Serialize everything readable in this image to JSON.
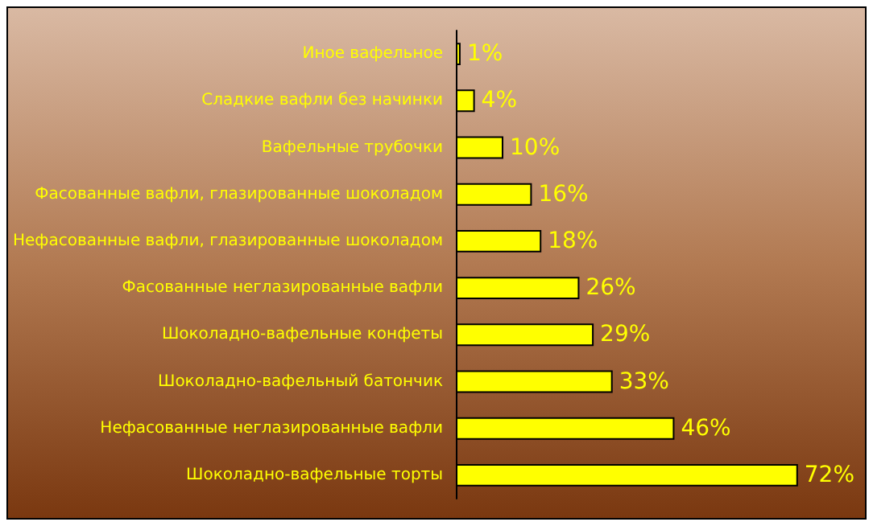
{
  "chart_data": {
    "type": "bar",
    "orientation": "horizontal",
    "categories": [
      "Иное вафельное",
      "Сладкие вафли без начинки",
      "Вафельные трубочки",
      "Фасованные вафли, глазированные шоколадом",
      "Нефасованные вафли, глазированные шоколадом",
      "Фасованные неглазированные вафли",
      "Шоколадно-вафельные конфеты",
      "Шоколадно-вафельный батончик",
      "Нефасованные неглазированные вафли",
      "Шоколадно-вафельные торты"
    ],
    "values": [
      1,
      4,
      10,
      16,
      18,
      26,
      29,
      33,
      46,
      72
    ],
    "value_labels": [
      "1%",
      "4%",
      "10%",
      "16%",
      "18%",
      "26%",
      "29%",
      "33%",
      "46%",
      "72%"
    ],
    "color": "#ffff00",
    "tick_labels": "y",
    "grid": false
  }
}
